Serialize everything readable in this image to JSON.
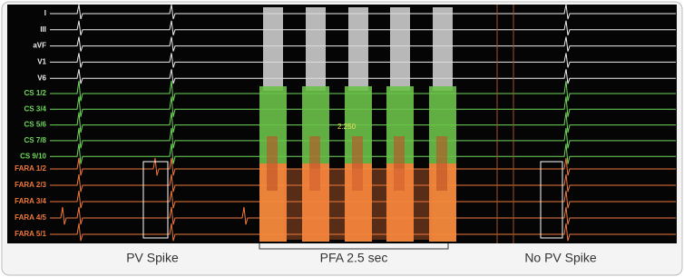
{
  "channels": {
    "ecg": [
      "I",
      "III",
      "aVF",
      "V1",
      "V6"
    ],
    "cs": [
      "CS 1/2",
      "CS 3/4",
      "CS 5/6",
      "CS 7/8",
      "CS 9/10"
    ],
    "fara": [
      "FARA 1/2",
      "FARA 2/3",
      "FARA 3/4",
      "FARA 4/5",
      "FARA 5/1"
    ]
  },
  "annotations": {
    "measurement": "2.250",
    "pv_spike": "PV Spike",
    "pfa": "PFA 2.5 sec",
    "no_pv_spike": "No PV Spike"
  }
}
